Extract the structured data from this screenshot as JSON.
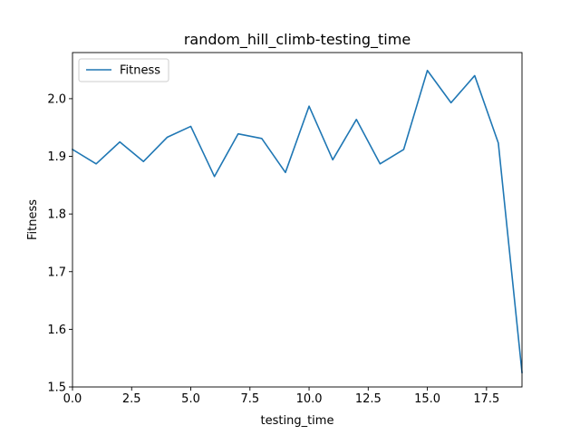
{
  "chart_data": {
    "type": "line",
    "title": "random_hill_climb-testing_time",
    "xlabel": "testing_time",
    "ylabel": "Fitness",
    "xlim": [
      0,
      19
    ],
    "ylim": [
      1.5,
      2.08
    ],
    "xticks": [
      0.0,
      2.5,
      5.0,
      7.5,
      10.0,
      12.5,
      15.0,
      17.5
    ],
    "xtick_labels": [
      "0.0",
      "2.5",
      "5.0",
      "7.5",
      "10.0",
      "12.5",
      "15.0",
      "17.5"
    ],
    "yticks": [
      1.5,
      1.6,
      1.7,
      1.8,
      1.9,
      2.0
    ],
    "ytick_labels": [
      "1.5",
      "1.6",
      "1.7",
      "1.8",
      "1.9",
      "2.0"
    ],
    "grid": false,
    "legend_position": "upper-left",
    "series": [
      {
        "name": "Fitness",
        "color": "#1f77b4",
        "x": [
          0,
          1,
          2,
          3,
          4,
          5,
          6,
          7,
          8,
          9,
          10,
          11,
          12,
          13,
          14,
          15,
          16,
          17,
          18,
          19
        ],
        "y": [
          1.912,
          1.887,
          1.925,
          1.891,
          1.933,
          1.952,
          1.865,
          1.939,
          1.931,
          1.872,
          1.987,
          1.894,
          1.964,
          1.887,
          1.912,
          2.049,
          1.993,
          2.04,
          1.923,
          1.525
        ]
      }
    ]
  }
}
